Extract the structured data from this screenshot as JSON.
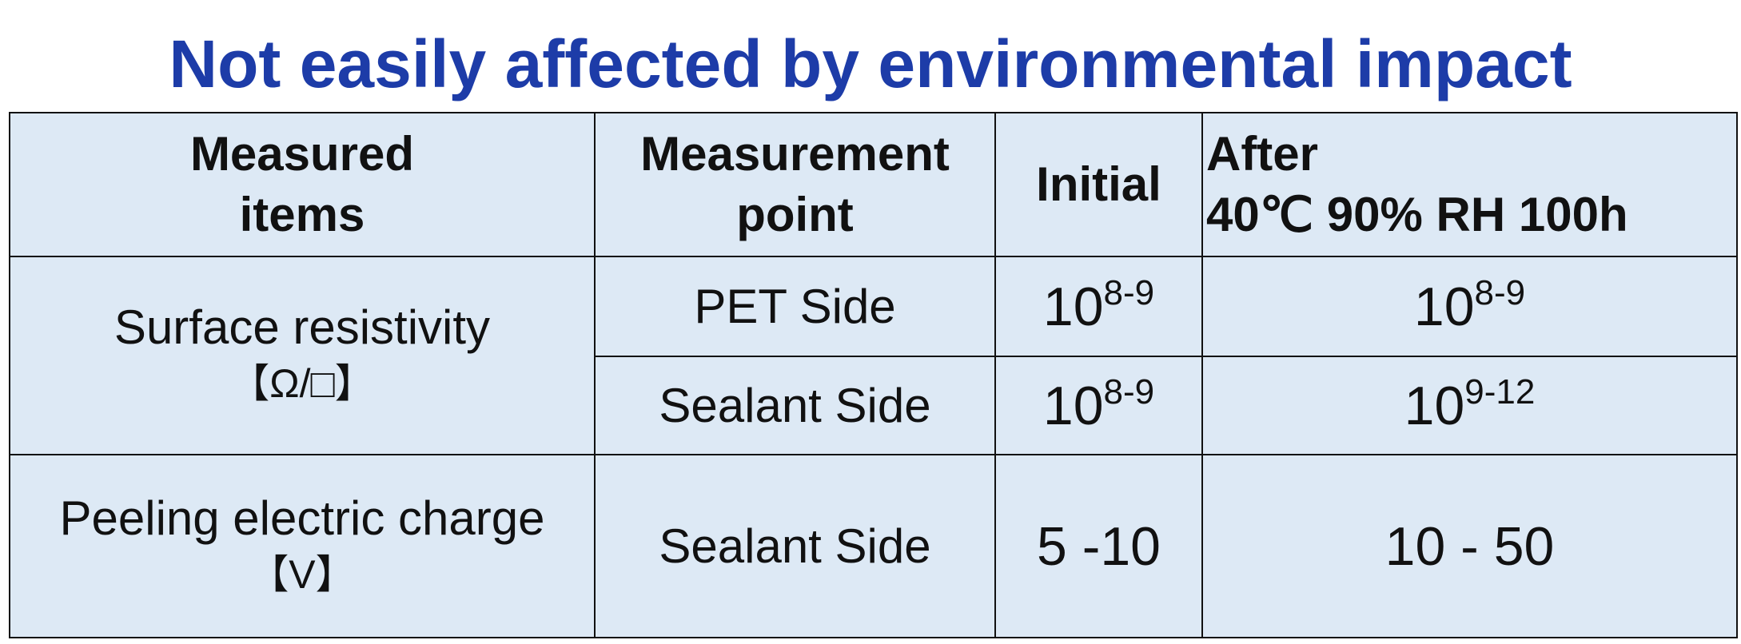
{
  "title": "Not easily affected by environmental impact",
  "table": {
    "header": [
      [
        "Measured",
        "items"
      ],
      [
        "Measurement",
        "point"
      ],
      [
        "Initial"
      ],
      [
        "After",
        "40℃ 90% RH 100h"
      ]
    ],
    "rows": [
      {
        "item": [
          "Surface resistivity",
          "【Ω/□】"
        ],
        "points": [
          {
            "point": "PET Side",
            "initial": {
              "base": "10",
              "exp": "8-9"
            },
            "after": {
              "base": "10",
              "exp": "8-9"
            }
          },
          {
            "point": "Sealant Side",
            "initial": {
              "base": "10",
              "exp": "8-9"
            },
            "after": {
              "base": "10",
              "exp": "9-12"
            }
          }
        ]
      },
      {
        "item": [
          "Peeling electric charge",
          "【V】"
        ],
        "points": [
          {
            "point": "Sealant Side",
            "initial": "5 -10",
            "after": "10 - 50"
          }
        ]
      }
    ]
  }
}
